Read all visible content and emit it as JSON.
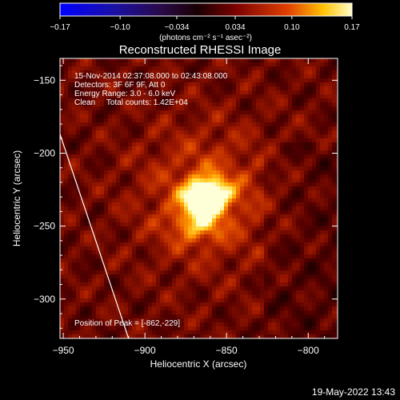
{
  "chart_data": {
    "type": "heatmap",
    "title": "Reconstructed RHESSI Image",
    "xlabel": "Heliocentric X (arcsec)",
    "ylabel": "Heliocentric Y (arcsec)",
    "xlim": [
      -952,
      -782
    ],
    "ylim": [
      -327,
      -135
    ],
    "x_ticks": [
      -950,
      -900,
      -850,
      -800
    ],
    "x_tick_labels": [
      "−950",
      "−900",
      "−850",
      "−800"
    ],
    "y_ticks": [
      -150,
      -200,
      -250,
      -300
    ],
    "y_tick_labels": [
      "−150",
      "−200",
      "−250",
      "−300"
    ],
    "colorbar": {
      "min": -0.17,
      "max": 0.17,
      "ticks": [
        -0.17,
        -0.1,
        -0.034,
        0.034,
        0.1,
        0.17
      ],
      "tick_labels": [
        "−0.17",
        "−0.10",
        "−0.034",
        "0.034",
        "0.10",
        "0.17"
      ],
      "units": "(photons cm⁻² s⁻¹ asec⁻²)"
    },
    "annotations": {
      "time_range": "15-Nov-2014 02:37:08.000 to 02:43:08.000",
      "detectors": "Detectors: 3F 6F 9F, Att 0",
      "energy_range": "Energy Range: 3.0 - 6.0 keV",
      "clean_counts": "Clean     Total counts: 1.42E+04",
      "peak": "Position of Peak = [-862,-229]"
    },
    "peak": [
      -862,
      -229
    ],
    "limb_line": [
      [
        -952,
        -187
      ],
      [
        -910,
        -327
      ]
    ],
    "colors": {
      "background": "#000000",
      "limb": "#ffffff"
    }
  },
  "footer": {
    "timestamp": "19-May-2022 13:43"
  }
}
